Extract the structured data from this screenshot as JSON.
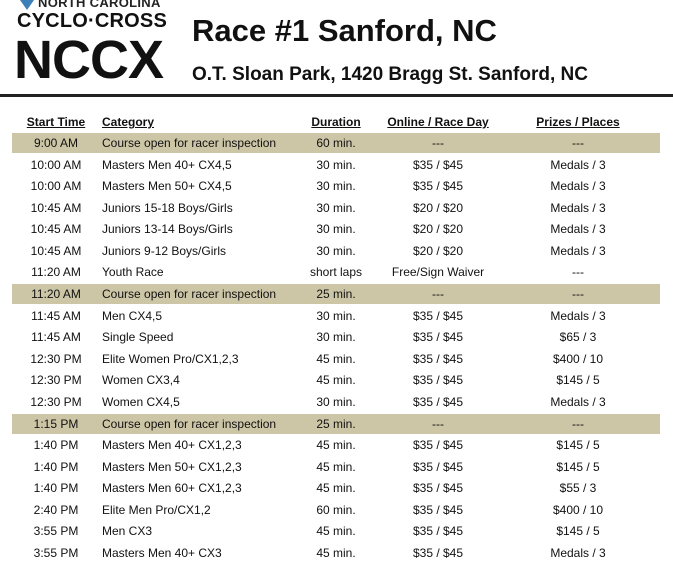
{
  "header": {
    "logo_state": "NORTH CAROLINA",
    "logo_sport": "CYCLO·CROSS",
    "logo_mark": "NCCX",
    "title": "Race #1 Sanford, NC",
    "subtitle": "O.T. Sloan Park, 1420 Bragg St. Sanford, NC"
  },
  "table": {
    "columns": [
      "Start Time",
      "Category",
      "Duration",
      "Online / Race Day",
      "Prizes / Places"
    ],
    "rows": [
      {
        "cells": [
          "9:00 AM",
          "Course open for racer inspection",
          "60 min.",
          "---",
          "---"
        ],
        "highlighted": true
      },
      {
        "cells": [
          "10:00 AM",
          "Masters Men 40+ CX4,5",
          "30 min.",
          "$35 / $45",
          "Medals / 3"
        ],
        "highlighted": false
      },
      {
        "cells": [
          "10:00 AM",
          "Masters Men 50+ CX4,5",
          "30 min.",
          "$35 / $45",
          "Medals / 3"
        ],
        "highlighted": false
      },
      {
        "cells": [
          "10:45 AM",
          "Juniors 15-18 Boys/Girls",
          "30 min.",
          "$20 / $20",
          "Medals / 3"
        ],
        "highlighted": false
      },
      {
        "cells": [
          "10:45 AM",
          "Juniors 13-14 Boys/Girls",
          "30 min.",
          "$20 / $20",
          "Medals / 3"
        ],
        "highlighted": false
      },
      {
        "cells": [
          "10:45 AM",
          "Juniors 9-12 Boys/Girls",
          "30 min.",
          "$20 / $20",
          "Medals / 3"
        ],
        "highlighted": false
      },
      {
        "cells": [
          "11:20 AM",
          "Youth Race",
          "short laps",
          "Free/Sign Waiver",
          "---"
        ],
        "highlighted": false
      },
      {
        "cells": [
          "11:20 AM",
          "Course open for racer inspection",
          "25 min.",
          "---",
          "---"
        ],
        "highlighted": true
      },
      {
        "cells": [
          "11:45 AM",
          "Men CX4,5",
          "30 min.",
          "$35 / $45",
          "Medals / 3"
        ],
        "highlighted": false
      },
      {
        "cells": [
          "11:45 AM",
          "Single Speed",
          "30 min.",
          "$35 / $45",
          "$65 / 3"
        ],
        "highlighted": false
      },
      {
        "cells": [
          "12:30 PM",
          "Elite Women Pro/CX1,2,3",
          "45 min.",
          "$35 / $45",
          "$400 / 10"
        ],
        "highlighted": false
      },
      {
        "cells": [
          "12:30 PM",
          "Women CX3,4",
          "45 min.",
          "$35 / $45",
          "$145 / 5"
        ],
        "highlighted": false
      },
      {
        "cells": [
          "12:30 PM",
          "Women CX4,5",
          "30 min.",
          "$35 / $45",
          "Medals / 3"
        ],
        "highlighted": false
      },
      {
        "cells": [
          "1:15 PM",
          "Course open for racer inspection",
          "25 min.",
          "---",
          "---"
        ],
        "highlighted": true
      },
      {
        "cells": [
          "1:40 PM",
          "Masters Men 40+ CX1,2,3",
          "45 min.",
          "$35 / $45",
          "$145 / 5"
        ],
        "highlighted": false
      },
      {
        "cells": [
          "1:40 PM",
          "Masters Men 50+ CX1,2,3",
          "45 min.",
          "$35 / $45",
          "$145 / 5"
        ],
        "highlighted": false
      },
      {
        "cells": [
          "1:40 PM",
          "Masters Men 60+ CX1,2,3",
          "45 min.",
          "$35 / $45",
          "$55 / 3"
        ],
        "highlighted": false
      },
      {
        "cells": [
          "2:40 PM",
          "Elite Men Pro/CX1,2",
          "60 min.",
          "$35 / $45",
          "$400 / 10"
        ],
        "highlighted": false
      },
      {
        "cells": [
          "3:55 PM",
          "Men CX3",
          "45 min.",
          "$35 / $45",
          "$145 / 5"
        ],
        "highlighted": false
      },
      {
        "cells": [
          "3:55 PM",
          "Masters Men 40+ CX3",
          "45 min.",
          "$35 / $45",
          "Medals / 3"
        ],
        "highlighted": false
      }
    ]
  }
}
